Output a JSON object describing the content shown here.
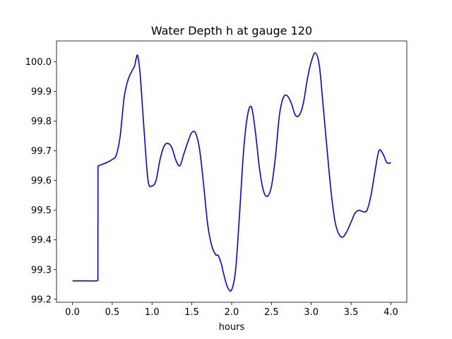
{
  "chart_data": {
    "type": "line",
    "title": "Water Depth h at gauge 120",
    "xlabel": "hours",
    "ylabel": "",
    "xlim": [
      -0.2,
      4.2
    ],
    "ylim": [
      99.19,
      100.07
    ],
    "x_ticks": [
      0.0,
      0.5,
      1.0,
      1.5,
      2.0,
      2.5,
      3.0,
      3.5,
      4.0
    ],
    "x_tick_labels": [
      "0.0",
      "0.5",
      "1.0",
      "1.5",
      "2.0",
      "2.5",
      "3.0",
      "3.5",
      "4.0"
    ],
    "y_ticks": [
      99.2,
      99.3,
      99.4,
      99.5,
      99.6,
      99.7,
      99.8,
      99.9,
      100.0
    ],
    "y_tick_labels": [
      "99.2",
      "99.3",
      "99.4",
      "99.5",
      "99.6",
      "99.7",
      "99.8",
      "99.9",
      "100.0"
    ],
    "grid": false,
    "legend": "none",
    "series": [
      {
        "color": "#0000ff",
        "x": [
          0.0,
          0.1,
          0.2,
          0.3,
          0.32,
          0.321,
          0.35,
          0.4,
          0.45,
          0.5,
          0.55,
          0.6,
          0.65,
          0.7,
          0.75,
          0.78,
          0.8,
          0.82,
          0.85,
          0.9,
          0.95,
          1.0,
          1.05,
          1.1,
          1.15,
          1.2,
          1.25,
          1.3,
          1.35,
          1.4,
          1.45,
          1.5,
          1.55,
          1.6,
          1.65,
          1.7,
          1.75,
          1.8,
          1.83,
          1.87,
          1.9,
          1.95,
          2.0,
          2.05,
          2.1,
          2.15,
          2.2,
          2.25,
          2.3,
          2.35,
          2.4,
          2.45,
          2.5,
          2.55,
          2.6,
          2.65,
          2.7,
          2.75,
          2.8,
          2.85,
          2.9,
          2.95,
          3.0,
          3.05,
          3.1,
          3.15,
          3.2,
          3.25,
          3.3,
          3.35,
          3.4,
          3.45,
          3.5,
          3.55,
          3.6,
          3.65,
          3.7,
          3.75,
          3.8,
          3.85,
          3.9,
          3.95,
          4.0
        ],
        "y": [
          99.262,
          99.262,
          99.262,
          99.262,
          99.264,
          99.648,
          99.652,
          99.657,
          99.663,
          99.671,
          99.685,
          99.75,
          99.88,
          99.94,
          99.97,
          99.985,
          100.01,
          100.02,
          99.96,
          99.77,
          99.6,
          99.582,
          99.6,
          99.67,
          99.715,
          99.725,
          99.71,
          99.668,
          99.65,
          99.69,
          99.73,
          99.762,
          99.758,
          99.7,
          99.58,
          99.45,
          99.38,
          99.35,
          99.348,
          99.32,
          99.285,
          99.24,
          99.232,
          99.3,
          99.49,
          99.7,
          99.82,
          99.847,
          99.76,
          99.64,
          99.565,
          99.547,
          99.58,
          99.68,
          99.82,
          99.88,
          99.885,
          99.86,
          99.82,
          99.82,
          99.86,
          99.94,
          100.0,
          100.03,
          99.99,
          99.85,
          99.7,
          99.56,
          99.46,
          99.418,
          99.41,
          99.43,
          99.46,
          99.49,
          99.5,
          99.495,
          99.5,
          99.55,
          99.63,
          99.7,
          99.69,
          99.66,
          99.66
        ]
      }
    ]
  }
}
